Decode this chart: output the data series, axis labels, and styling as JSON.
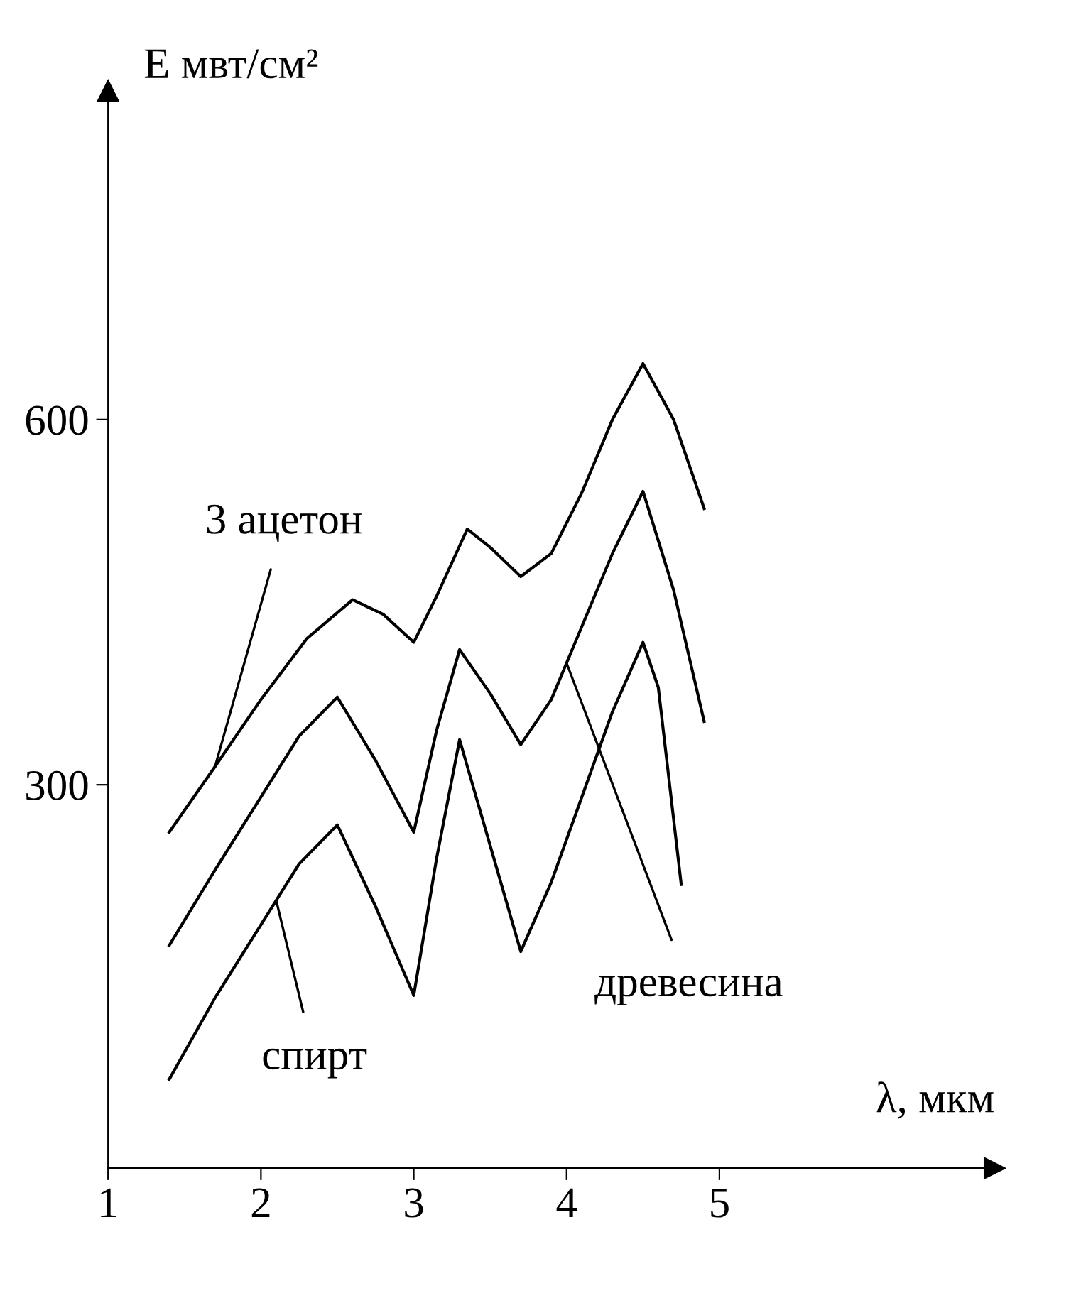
{
  "chart_data": {
    "type": "line",
    "xlabel": "λ, мкм",
    "ylabel": "E мвт/см²",
    "xlim": [
      1,
      6.8
    ],
    "ylim": [
      -15,
      870
    ],
    "xticks": [
      1,
      2,
      3,
      4,
      5
    ],
    "yticks": [
      300,
      600
    ],
    "grid": false,
    "legend": false,
    "marker": "none",
    "line_style": "solid",
    "series": [
      {
        "color": "#000000",
        "x": [
          1.4,
          1.7,
          2.0,
          2.3,
          2.6,
          2.8,
          3.0,
          3.15,
          3.35,
          3.5,
          3.7,
          3.9,
          4.1,
          4.3,
          4.5,
          4.7,
          4.9
        ],
        "values": [
          261,
          315,
          370,
          420,
          452,
          440,
          417,
          455,
          510,
          495,
          471,
          490,
          540,
          600,
          646,
          600,
          527
        ]
      },
      {
        "color": "#000000",
        "x": [
          1.4,
          1.7,
          2.0,
          2.25,
          2.5,
          2.75,
          3.0,
          3.15,
          3.3,
          3.5,
          3.7,
          3.9,
          4.1,
          4.3,
          4.5,
          4.7,
          4.9
        ],
        "values": [
          168,
          230,
          290,
          340,
          372,
          320,
          261,
          345,
          411,
          375,
          333,
          370,
          430,
          490,
          541,
          460,
          352
        ]
      },
      {
        "color": "#000000",
        "x": [
          1.4,
          1.7,
          2.0,
          2.25,
          2.5,
          2.75,
          3.0,
          3.15,
          3.3,
          3.5,
          3.7,
          3.9,
          4.1,
          4.3,
          4.5,
          4.6,
          4.75
        ],
        "values": [
          58,
          125,
          185,
          235,
          267,
          200,
          127,
          240,
          337,
          250,
          163,
          220,
          290,
          360,
          417,
          380,
          218
        ]
      }
    ],
    "annotations": [
      {
        "text": "3 ацетон",
        "x": 1.7,
        "y": 315
      },
      {
        "text": "древесина",
        "x": 4.0,
        "y": 400
      },
      {
        "text": "спирт",
        "x": 2.1,
        "y": 205
      }
    ]
  }
}
